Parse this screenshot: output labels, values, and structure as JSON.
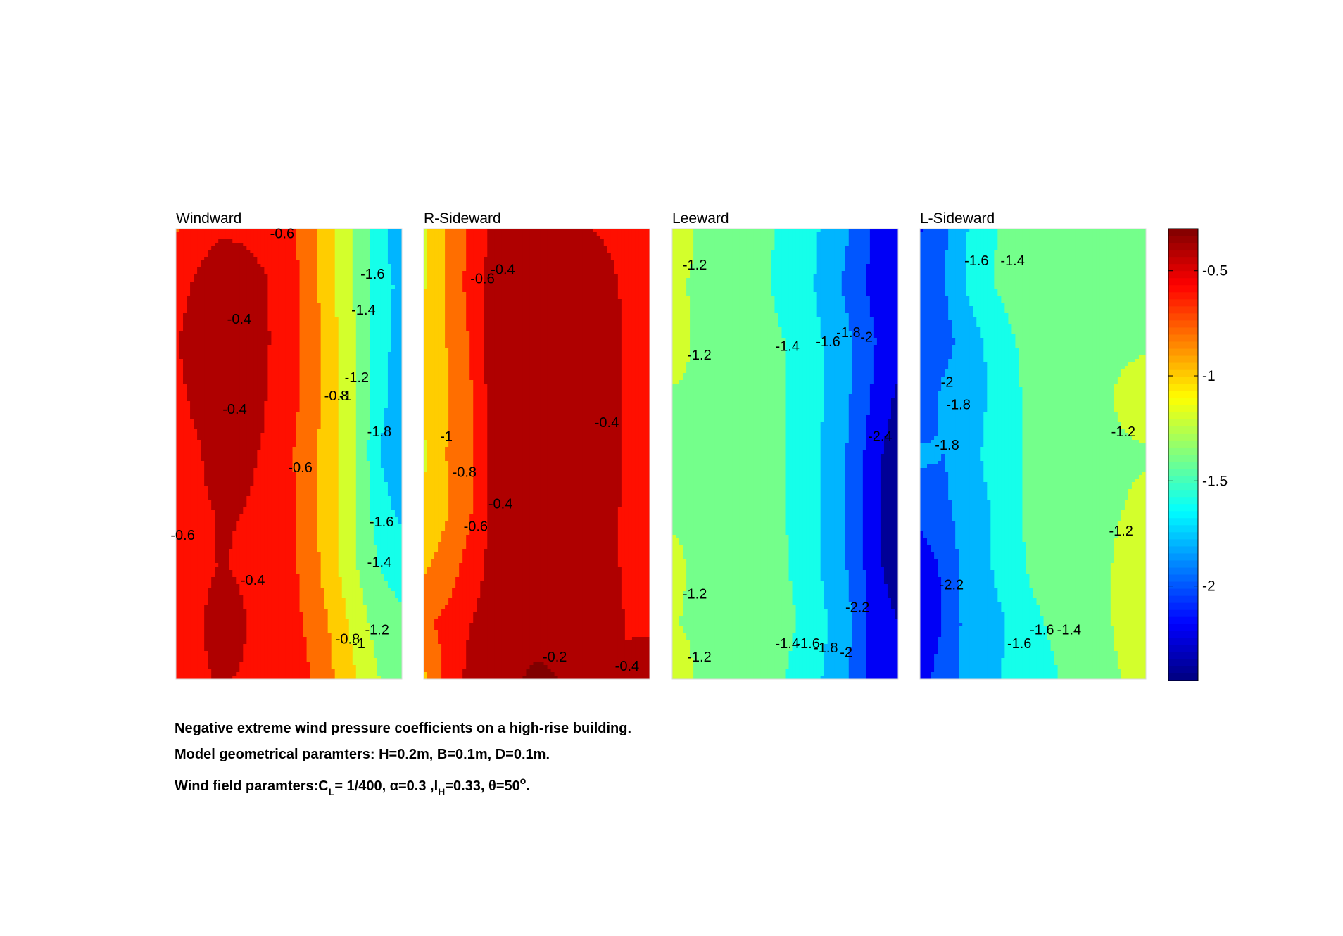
{
  "chart_data": {
    "type": "heatmap",
    "subtype": "filled-contour",
    "colormap": "jet",
    "colorbar": {
      "ticks": [
        -0.5,
        -1,
        -1.5,
        -2
      ],
      "tick_labels": [
        "-0.5",
        "-1",
        "-1.5",
        "-2"
      ],
      "range": [
        -2.45,
        -0.3
      ]
    },
    "panels": [
      {
        "title": "Windward",
        "values": [
          [
            -0.72,
            -0.56,
            -0.52,
            -0.53,
            -0.56,
            -0.62,
            -0.85,
            -1.1,
            -1.35,
            -1.6,
            -1.9
          ],
          [
            -0.55,
            -0.47,
            -0.4,
            -0.42,
            -0.49,
            -0.61,
            -0.82,
            -1.1,
            -1.35,
            -1.62,
            -1.75
          ],
          [
            -0.51,
            -0.44,
            -0.34,
            -0.35,
            -0.48,
            -0.61,
            -0.79,
            -1.05,
            -1.3,
            -1.63,
            -1.78
          ],
          [
            -0.53,
            -0.47,
            -0.36,
            -0.36,
            -0.5,
            -0.62,
            -0.8,
            -1.05,
            -1.3,
            -1.65,
            -1.78
          ],
          [
            -0.55,
            -0.51,
            -0.44,
            -0.45,
            -0.53,
            -0.66,
            -0.85,
            -1.05,
            -1.3,
            -1.7,
            -1.85
          ],
          [
            -0.55,
            -0.52,
            -0.49,
            -0.5,
            -0.55,
            -0.64,
            -0.85,
            -1.05,
            -1.3,
            -1.62,
            -1.75
          ],
          [
            -0.65,
            -0.54,
            -0.49,
            -0.52,
            -0.57,
            -0.63,
            -0.82,
            -1.05,
            -1.3,
            -1.5,
            -1.6
          ],
          [
            -0.56,
            -0.52,
            -0.43,
            -0.49,
            -0.55,
            -0.62,
            -0.75,
            -0.95,
            -1.2,
            -1.4,
            -1.45
          ],
          [
            -0.55,
            -0.52,
            -0.49,
            -0.51,
            -0.55,
            -0.6,
            -0.7,
            -0.9,
            -1.1,
            -1.3,
            -1.3
          ]
        ],
        "contour_labels": [
          "-0.6",
          "-1.6",
          "-0.4",
          "-1.4",
          "-1.2",
          "-0.4",
          "-0.8",
          "-1",
          "-1.8",
          "-0.6",
          "-1.6",
          "-0.6",
          "-1.4",
          "-0.4",
          "-1.2",
          "-0.8",
          "-1"
        ]
      },
      {
        "title": "R-Sideward",
        "values": [
          [
            -1.15,
            -0.9,
            -0.68,
            -0.48,
            -0.45,
            -0.44,
            -0.44,
            -0.48,
            -0.52,
            -0.55,
            -0.56
          ],
          [
            -1.12,
            -0.9,
            -0.64,
            -0.4,
            -0.36,
            -0.35,
            -0.36,
            -0.38,
            -0.45,
            -0.53,
            -0.55
          ],
          [
            -1.05,
            -0.9,
            -0.7,
            -0.4,
            -0.36,
            -0.35,
            -0.36,
            -0.37,
            -0.42,
            -0.52,
            -0.56
          ],
          [
            -1.02,
            -0.92,
            -0.75,
            -0.42,
            -0.37,
            -0.36,
            -0.36,
            -0.37,
            -0.41,
            -0.52,
            -0.56
          ],
          [
            -1.15,
            -0.9,
            -0.75,
            -0.43,
            -0.38,
            -0.37,
            -0.37,
            -0.38,
            -0.43,
            -0.52,
            -0.55
          ],
          [
            -1.05,
            -0.92,
            -0.74,
            -0.45,
            -0.38,
            -0.37,
            -0.37,
            -0.38,
            -0.44,
            -0.53,
            -0.55
          ],
          [
            -0.93,
            -0.82,
            -0.62,
            -0.44,
            -0.39,
            -0.37,
            -0.37,
            -0.38,
            -0.44,
            -0.53,
            -0.55
          ],
          [
            -0.73,
            -0.65,
            -0.51,
            -0.41,
            -0.39,
            -0.37,
            -0.38,
            -0.39,
            -0.42,
            -0.51,
            -0.55
          ],
          [
            -0.95,
            -0.65,
            -0.45,
            -0.38,
            -0.32,
            -0.26,
            -0.3,
            -0.36,
            -0.41,
            -0.48,
            -0.35
          ]
        ],
        "contour_labels": [
          "-0.6",
          "-0.4",
          "-0.4",
          "-1",
          "-0.8",
          "-0.4",
          "-0.6",
          "-0.2",
          "-0.4"
        ]
      },
      {
        "title": "Leeward",
        "values": [
          [
            -1.12,
            -1.3,
            -1.32,
            -1.35,
            -1.45,
            -1.55,
            -1.62,
            -1.78,
            -1.92,
            -2.15,
            -2.18
          ],
          [
            -1.28,
            -1.32,
            -1.34,
            -1.35,
            -1.45,
            -1.58,
            -1.65,
            -1.82,
            -1.98,
            -2.18,
            -2.2
          ],
          [
            -1.12,
            -1.33,
            -1.35,
            -1.36,
            -1.42,
            -1.5,
            -1.6,
            -1.75,
            -1.9,
            -2.1,
            -2.2
          ],
          [
            -1.35,
            -1.35,
            -1.35,
            -1.37,
            -1.41,
            -1.5,
            -1.58,
            -1.75,
            -1.92,
            -2.15,
            -2.35
          ],
          [
            -1.36,
            -1.35,
            -1.35,
            -1.36,
            -1.4,
            -1.5,
            -1.6,
            -1.78,
            -1.95,
            -2.25,
            -2.42
          ],
          [
            -1.35,
            -1.35,
            -1.35,
            -1.36,
            -1.38,
            -1.5,
            -1.6,
            -1.78,
            -1.95,
            -2.25,
            -2.42
          ],
          [
            -1.22,
            -1.35,
            -1.35,
            -1.36,
            -1.38,
            -1.48,
            -1.6,
            -1.78,
            -1.95,
            -2.25,
            -2.42
          ],
          [
            -1.28,
            -1.34,
            -1.35,
            -1.36,
            -1.38,
            -1.45,
            -1.55,
            -1.72,
            -1.9,
            -2.2,
            -2.3
          ],
          [
            -1.15,
            -1.3,
            -1.33,
            -1.36,
            -1.4,
            -1.5,
            -1.62,
            -1.75,
            -1.95,
            -2.2,
            -2.3
          ]
        ],
        "contour_labels": [
          "-1.2",
          "-1.2",
          "-1.4",
          "-1.6",
          "-1.8",
          "-2",
          "-2.4",
          "-1.2",
          "-2.2",
          "-1.4",
          "-1.6",
          "-1.8",
          "-2",
          "-1.2"
        ]
      },
      {
        "title": "L-Sideward",
        "values": [
          [
            -2.12,
            -1.95,
            -1.72,
            -1.55,
            -1.42,
            -1.35,
            -1.35,
            -1.35,
            -1.35,
            -1.34,
            -1.32
          ],
          [
            -1.95,
            -1.92,
            -1.7,
            -1.53,
            -1.43,
            -1.35,
            -1.35,
            -1.35,
            -1.35,
            -1.34,
            -1.33
          ],
          [
            -2.1,
            -2.0,
            -1.8,
            -1.68,
            -1.53,
            -1.42,
            -1.37,
            -1.36,
            -1.35,
            -1.34,
            -1.33
          ],
          [
            -2.12,
            -1.85,
            -1.8,
            -1.7,
            -1.55,
            -1.45,
            -1.38,
            -1.36,
            -1.34,
            -1.26,
            -1.2
          ],
          [
            -1.85,
            -1.9,
            -1.82,
            -1.65,
            -1.55,
            -1.45,
            -1.38,
            -1.36,
            -1.35,
            -1.33,
            -1.32
          ],
          [
            -2.05,
            -1.95,
            -1.82,
            -1.72,
            -1.55,
            -1.45,
            -1.38,
            -1.36,
            -1.35,
            -1.3,
            -1.25
          ],
          [
            -2.2,
            -2.08,
            -1.82,
            -1.72,
            -1.6,
            -1.45,
            -1.4,
            -1.36,
            -1.35,
            -1.25,
            -1.15
          ],
          [
            -2.2,
            -2.1,
            -1.85,
            -1.78,
            -1.68,
            -1.55,
            -1.45,
            -1.36,
            -1.35,
            -1.25,
            -1.15
          ],
          [
            -2.15,
            -2.05,
            -1.85,
            -1.72,
            -1.68,
            -1.62,
            -1.52,
            -1.38,
            -1.35,
            -1.3,
            -1.25
          ]
        ],
        "contour_labels": [
          "-1.6",
          "-1.4",
          "-2",
          "-1.8",
          "-1.8",
          "-1.2",
          "-1.2",
          "-2.2",
          "-1.6",
          "-1.6",
          "-1.4"
        ]
      }
    ]
  },
  "caption": {
    "line1": "Negative extreme wind pressure coefficients on a high-rise building.",
    "line2": "Model geometrical paramters: H=0.2m, B=0.1m, D=0.1m.",
    "line3_a": "Wind field paramters:C",
    "line3_b": "L",
    "line3_c": "= 1/400, α=0.3 ,I",
    "line3_d": "H",
    "line3_e": "=0.33, θ=50",
    "line3_f": "o",
    "line3_g": "."
  }
}
